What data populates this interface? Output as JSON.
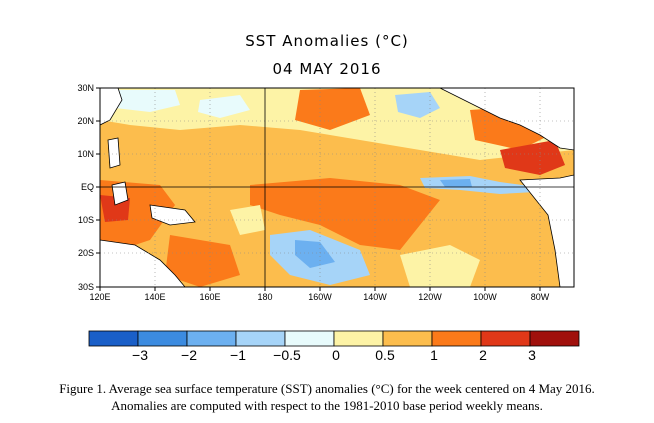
{
  "title": "SST Anomalies (°C)",
  "subtitle": "04 MAY 2016",
  "lat_labels": [
    "30N",
    "20N",
    "10N",
    "EQ",
    "10S",
    "20S",
    "30S"
  ],
  "lon_labels": [
    "120E",
    "140E",
    "160E",
    "180",
    "160W",
    "140W",
    "120W",
    "100W",
    "80W"
  ],
  "colorbar": {
    "colors": [
      "#1a5fc8",
      "#3c8be0",
      "#6cb0f0",
      "#a6d4f8",
      "#e8fbfc",
      "#fdf3a6",
      "#fcbd4d",
      "#fb7a1a",
      "#e03818",
      "#a0100c"
    ],
    "labels": [
      "−3",
      "−2",
      "−1",
      "−0.5",
      "0",
      "0.5",
      "1",
      "2",
      "3"
    ]
  },
  "caption_line1": "Figure 1. Average sea surface temperature (SST) anomalies (°C) for the week centered on 4 May 2016.",
  "caption_line2": "Anomalies are computed with respect to the 1981-2010 base period weekly means."
}
